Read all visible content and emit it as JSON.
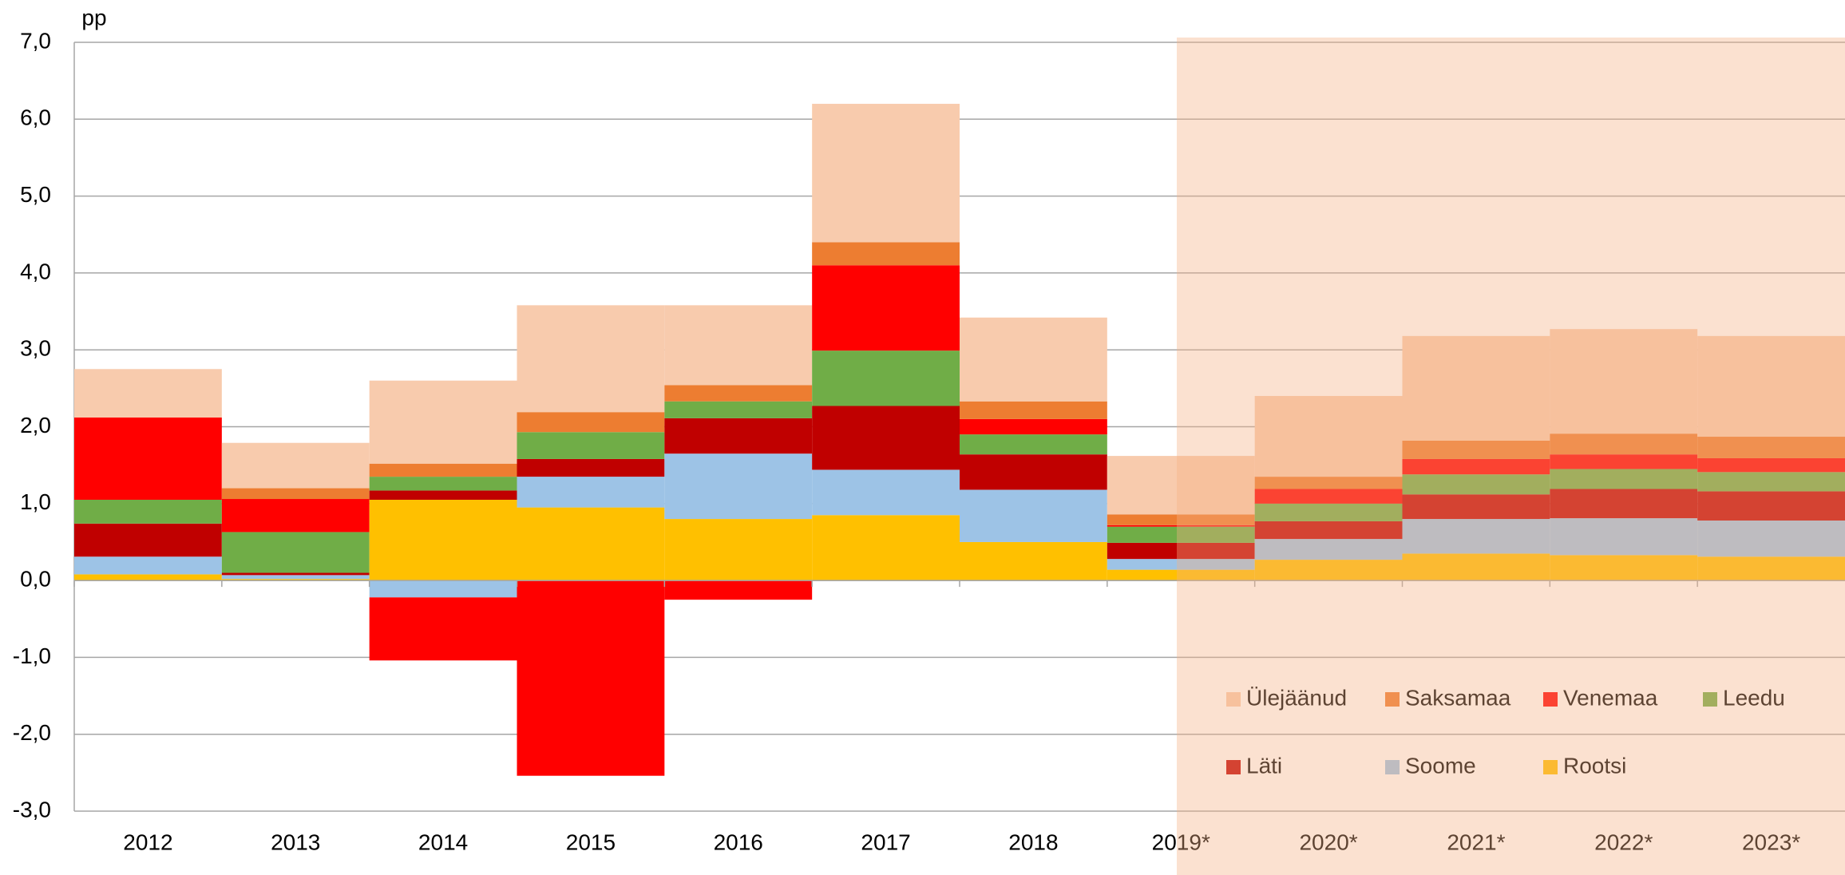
{
  "chart_data": {
    "type": "stacked_bar",
    "unit": "pp",
    "categories": [
      "2012",
      "2013",
      "2014",
      "2015",
      "2016",
      "2017",
      "2018",
      "2019*",
      "2020*",
      "2021*",
      "2022*",
      "2023*"
    ],
    "series": [
      {
        "name": "Rootsi",
        "color": "#ffc000",
        "values": [
          0.08,
          0.02,
          1.05,
          0.95,
          0.8,
          0.85,
          0.5,
          0.14,
          0.27,
          0.35,
          0.33,
          0.31
        ]
      },
      {
        "name": "Soome",
        "color": "#9dc3e6",
        "values": [
          0.23,
          0.05,
          -0.22,
          0.4,
          0.85,
          0.59,
          0.68,
          0.14,
          0.27,
          0.45,
          0.48,
          0.47
        ]
      },
      {
        "name": "Läti",
        "color": "#c00000",
        "values": [
          0.43,
          0.03,
          0.12,
          0.23,
          0.46,
          0.83,
          0.46,
          0.21,
          0.23,
          0.32,
          0.38,
          0.38
        ]
      },
      {
        "name": "Leedu",
        "color": "#70ad47",
        "values": [
          0.31,
          0.53,
          0.18,
          0.35,
          0.22,
          0.72,
          0.26,
          0.21,
          0.23,
          0.26,
          0.26,
          0.25
        ]
      },
      {
        "name": "Venemaa",
        "color": "#ff0000",
        "values": [
          1.07,
          0.43,
          -0.82,
          -2.54,
          -0.25,
          1.11,
          0.2,
          0.02,
          0.19,
          0.2,
          0.19,
          0.18
        ]
      },
      {
        "name": "Saksamaa",
        "color": "#ed7d31",
        "values": [
          0,
          0.14,
          0.17,
          0.26,
          0.21,
          0.3,
          0.23,
          0.14,
          0.16,
          0.24,
          0.27,
          0.28
        ]
      },
      {
        "name": "Ülejäänud",
        "color": "#f8cbad",
        "values": [
          0.63,
          0.59,
          1.08,
          1.39,
          1.04,
          1.8,
          1.09,
          0.76,
          1.05,
          1.36,
          1.36,
          1.31
        ]
      }
    ],
    "ylim": [
      -3,
      7
    ],
    "yticks": [
      {
        "value": -3,
        "label": "-3,0"
      },
      {
        "value": -2,
        "label": "-2,0"
      },
      {
        "value": -1,
        "label": "-1,0"
      },
      {
        "value": 0,
        "label": "0,0"
      },
      {
        "value": 1,
        "label": "1,0"
      },
      {
        "value": 2,
        "label": "2,0"
      },
      {
        "value": 3,
        "label": "3,0"
      },
      {
        "value": 4,
        "label": "4,0"
      },
      {
        "value": 5,
        "label": "5,0"
      },
      {
        "value": 6,
        "label": "6,0"
      },
      {
        "value": 7,
        "label": "7,0"
      }
    ],
    "grid": true
  }
}
